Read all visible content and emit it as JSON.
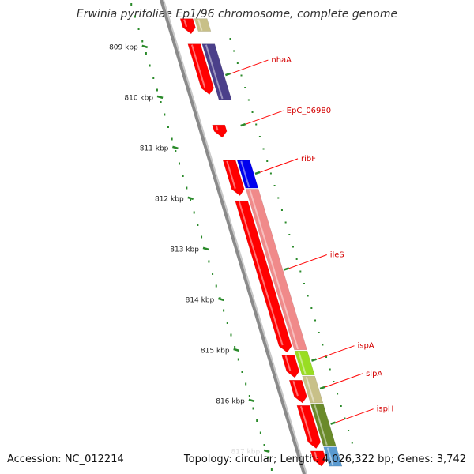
{
  "title": "Erwinia pyrifoliae Ep1/96 chromosome, complete genome",
  "footer": {
    "accession": "Accession: NC_012214",
    "summary": "Topology: circular; Length: 4,026,322 bp; Genes: 3,742"
  },
  "ruler": {
    "unit": "kbp",
    "ticks": [
      {
        "label": "809 kbp",
        "kbp": 809
      },
      {
        "label": "810 kbp",
        "kbp": 810
      },
      {
        "label": "811 kbp",
        "kbp": 811
      },
      {
        "label": "812 kbp",
        "kbp": 812
      },
      {
        "label": "813 kbp",
        "kbp": 813
      },
      {
        "label": "814 kbp",
        "kbp": 814
      },
      {
        "label": "815 kbp",
        "kbp": 815
      },
      {
        "label": "816 kbp",
        "kbp": 816
      },
      {
        "label": "817 kbp",
        "kbp": 817
      }
    ]
  },
  "tracks": {
    "cds": [
      {
        "start": 808.45,
        "end": 808.75,
        "color": "#ff0000"
      },
      {
        "start": 808.95,
        "end": 809.95,
        "color": "#ff0000"
      },
      {
        "start": 810.55,
        "end": 810.8,
        "color": "#ff0000"
      },
      {
        "start": 811.25,
        "end": 811.95,
        "color": "#ff0000"
      },
      {
        "start": 812.05,
        "end": 815.05,
        "color": "#ff0000"
      },
      {
        "start": 815.1,
        "end": 815.55,
        "color": "#ff0000"
      },
      {
        "start": 815.6,
        "end": 816.05,
        "color": "#ff0000"
      },
      {
        "start": 816.1,
        "end": 816.95,
        "color": "#ff0000"
      },
      {
        "start": 817.0,
        "end": 817.3,
        "color": "#ff0000"
      }
    ],
    "genes": [
      {
        "start": 808.45,
        "end": 808.7,
        "color": "#c8c088"
      },
      {
        "start": 808.95,
        "end": 810.05,
        "color": "#4b3f8a"
      },
      {
        "start": 811.25,
        "end": 811.8,
        "color": "#0000ee"
      },
      {
        "start": 811.82,
        "end": 815.0,
        "color": "#f08a8a"
      },
      {
        "start": 815.02,
        "end": 815.5,
        "color": "#99dd22"
      },
      {
        "start": 815.52,
        "end": 816.05,
        "color": "#c8c088"
      },
      {
        "start": 816.07,
        "end": 816.9,
        "color": "#6a8a2a"
      },
      {
        "start": 816.92,
        "end": 817.3,
        "color": "#5a9ad0"
      }
    ],
    "labels": [
      {
        "name": "nhaA",
        "kbp": 809.55
      },
      {
        "name": "EpC_06980",
        "kbp": 810.55
      },
      {
        "name": "ribF",
        "kbp": 811.5
      },
      {
        "name": "ileS",
        "kbp": 813.4
      },
      {
        "name": "ispA",
        "kbp": 815.2
      },
      {
        "name": "slpA",
        "kbp": 815.75
      },
      {
        "name": "ispH",
        "kbp": 816.45
      }
    ]
  },
  "colors": {
    "backbone": "#8a8a8a",
    "tick": "#2a8a2a",
    "label_line": "#ff0000",
    "label_text": "#d40000"
  }
}
